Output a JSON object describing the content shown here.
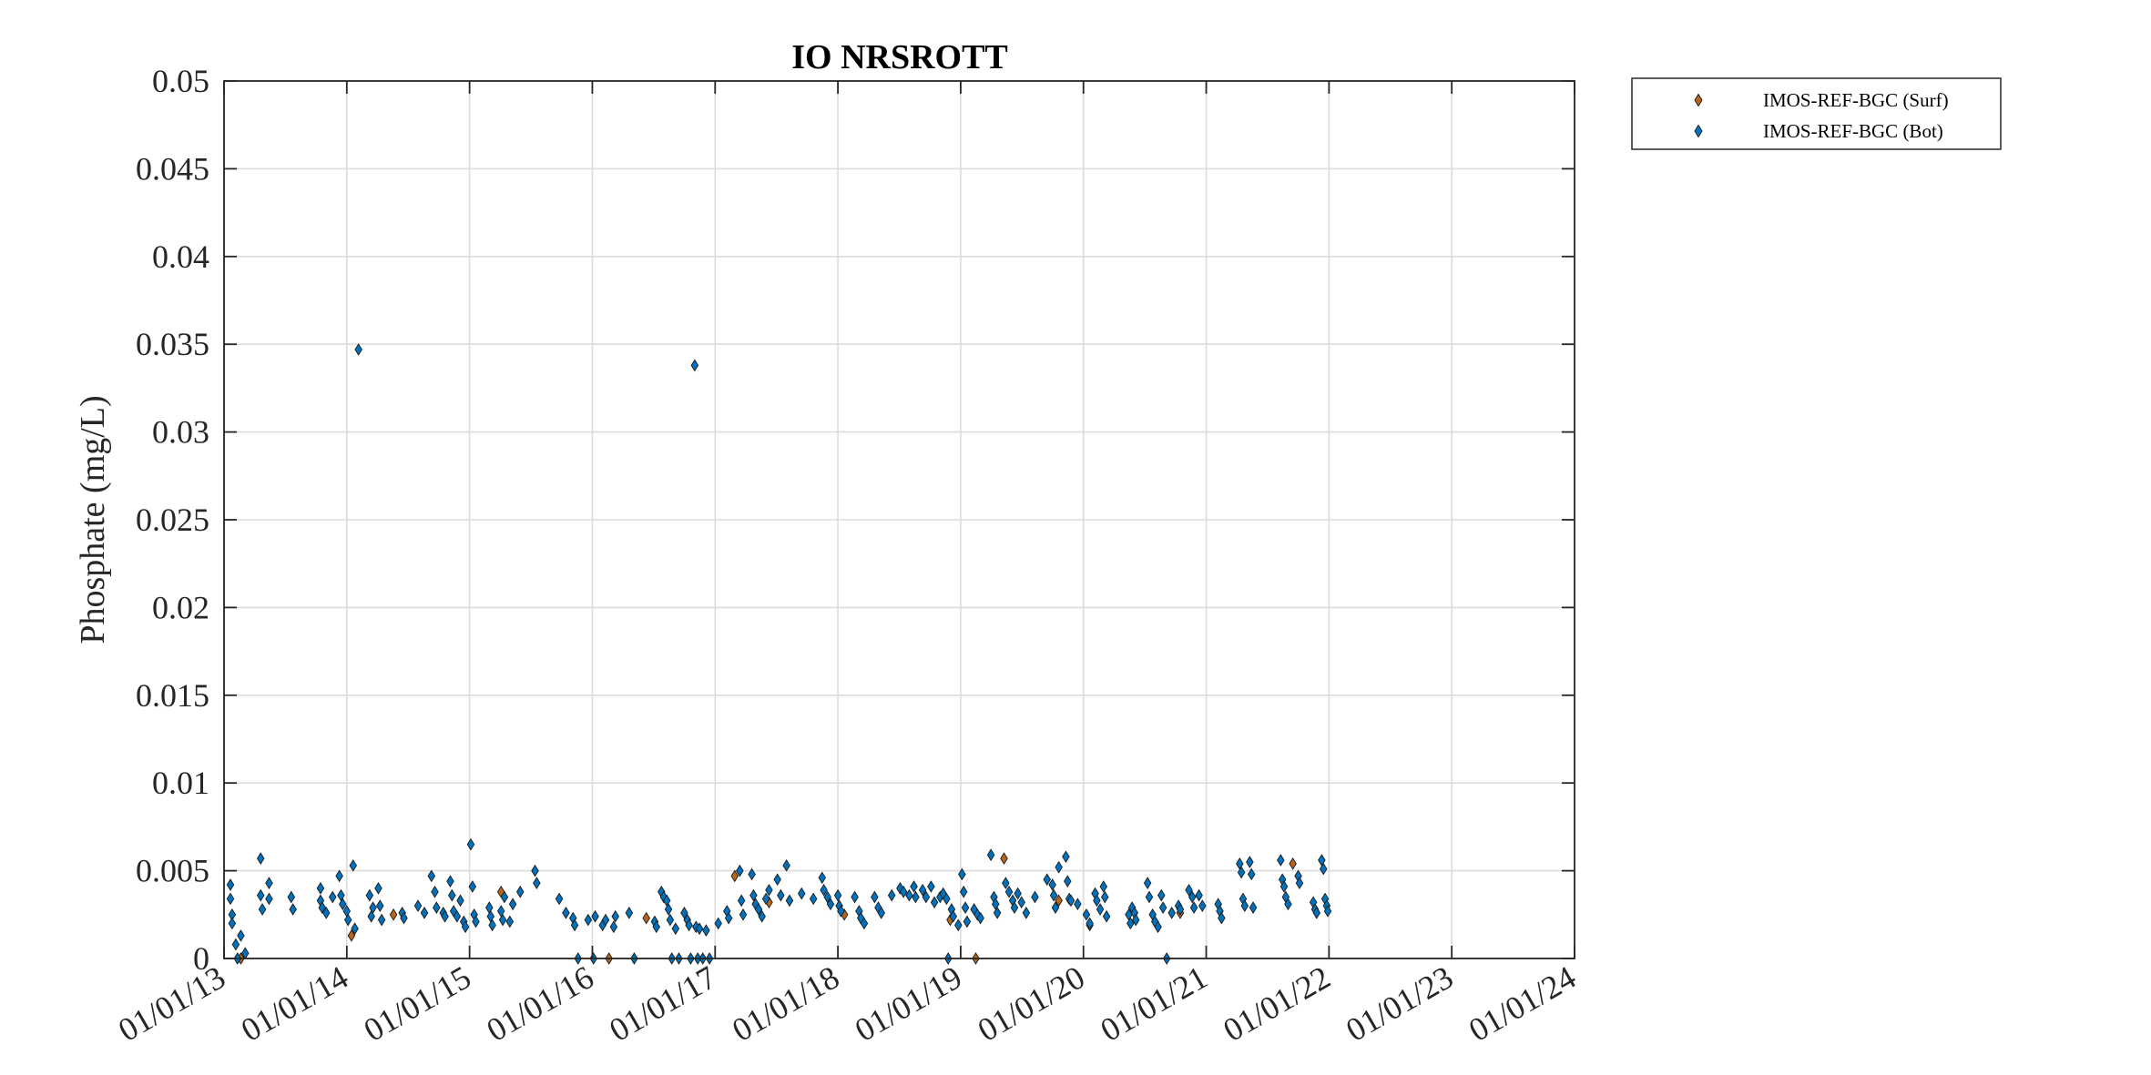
{
  "chart_data": {
    "type": "scatter",
    "title": "IO NRSROTT",
    "xlabel": "",
    "ylabel": "Phosphate (mg/L)",
    "xlim": [
      "2013-01-01",
      "2024-01-01"
    ],
    "ylim": [
      0,
      0.05
    ],
    "grid": true,
    "legend_position": "outside-top-right",
    "x_ticks": [
      "01/01/13",
      "01/01/14",
      "01/01/15",
      "01/01/16",
      "01/01/17",
      "01/01/18",
      "01/01/19",
      "01/01/20",
      "01/01/21",
      "01/01/22",
      "01/01/23",
      "01/01/24"
    ],
    "y_ticks": [
      "0",
      "0.005",
      "0.01",
      "0.015",
      "0.02",
      "0.025",
      "0.03",
      "0.035",
      "0.04",
      "0.045",
      "0.05"
    ],
    "series": [
      {
        "name": "IMOS-REF-BGC (Surf)",
        "color": "#b5651d",
        "marker": "diamond",
        "points": [
          [
            "2013-02-20",
            0.0
          ],
          [
            "2014-01-15",
            0.0013
          ],
          [
            "2014-05-20",
            0.0025
          ],
          [
            "2015-04-05",
            0.0038
          ],
          [
            "2016-02-20",
            0.0
          ],
          [
            "2016-06-10",
            0.0023
          ],
          [
            "2017-02-28",
            0.0047
          ],
          [
            "2017-06-10",
            0.0032
          ],
          [
            "2018-01-20",
            0.0025
          ],
          [
            "2018-12-01",
            0.0022
          ],
          [
            "2019-02-15",
            0.0
          ],
          [
            "2019-05-10",
            0.0057
          ],
          [
            "2019-10-20",
            0.0033
          ],
          [
            "2020-01-20",
            0.0019
          ],
          [
            "2020-10-15",
            0.0026
          ],
          [
            "2021-09-15",
            0.0054
          ]
        ]
      },
      {
        "name": "IMOS-REF-BGC (Bot)",
        "color": "#0072bd",
        "marker": "diamond",
        "points": [
          [
            "2013-01-20",
            0.0042
          ],
          [
            "2013-01-20",
            0.0034
          ],
          [
            "2013-01-25",
            0.0025
          ],
          [
            "2013-01-25",
            0.002
          ],
          [
            "2013-02-05",
            0.0008
          ],
          [
            "2013-02-10",
            0.0
          ],
          [
            "2013-02-20",
            0.0013
          ],
          [
            "2013-03-05",
            0.0003
          ],
          [
            "2013-04-20",
            0.0057
          ],
          [
            "2013-04-20",
            0.0036
          ],
          [
            "2013-04-25",
            0.0028
          ],
          [
            "2013-05-15",
            0.0043
          ],
          [
            "2013-05-15",
            0.0034
          ],
          [
            "2013-07-20",
            0.0035
          ],
          [
            "2013-07-25",
            0.0028
          ],
          [
            "2013-10-15",
            0.004
          ],
          [
            "2013-10-15",
            0.0033
          ],
          [
            "2013-10-20",
            0.0029
          ],
          [
            "2013-11-01",
            0.0026
          ],
          [
            "2013-11-20",
            0.0035
          ],
          [
            "2013-12-10",
            0.0047
          ],
          [
            "2013-12-15",
            0.0036
          ],
          [
            "2013-12-20",
            0.0031
          ],
          [
            "2014-01-01",
            0.0027
          ],
          [
            "2014-01-05",
            0.0022
          ],
          [
            "2014-01-20",
            0.0053
          ],
          [
            "2014-01-25",
            0.0017
          ],
          [
            "2014-02-05",
            0.0347
          ],
          [
            "2014-03-10",
            0.0036
          ],
          [
            "2014-03-15",
            0.0024
          ],
          [
            "2014-03-20",
            0.0029
          ],
          [
            "2014-04-05",
            0.004
          ],
          [
            "2014-04-10",
            0.003
          ],
          [
            "2014-04-15",
            0.0022
          ],
          [
            "2014-06-15",
            0.0026
          ],
          [
            "2014-06-20",
            0.0023
          ],
          [
            "2014-08-01",
            0.003
          ],
          [
            "2014-08-20",
            0.0026
          ],
          [
            "2014-09-10",
            0.0047
          ],
          [
            "2014-09-20",
            0.0038
          ],
          [
            "2014-09-25",
            0.0029
          ],
          [
            "2014-10-15",
            0.0026
          ],
          [
            "2014-10-20",
            0.0024
          ],
          [
            "2014-11-05",
            0.0044
          ],
          [
            "2014-11-10",
            0.0036
          ],
          [
            "2014-11-15",
            0.0027
          ],
          [
            "2014-11-25",
            0.0024
          ],
          [
            "2014-12-05",
            0.0033
          ],
          [
            "2014-12-15",
            0.0021
          ],
          [
            "2014-12-20",
            0.0018
          ],
          [
            "2015-01-05",
            0.0065
          ],
          [
            "2015-01-10",
            0.0041
          ],
          [
            "2015-01-15",
            0.0025
          ],
          [
            "2015-01-20",
            0.0021
          ],
          [
            "2015-03-01",
            0.0029
          ],
          [
            "2015-03-05",
            0.0024
          ],
          [
            "2015-03-10",
            0.0019
          ],
          [
            "2015-04-05",
            0.0027
          ],
          [
            "2015-04-10",
            0.0022
          ],
          [
            "2015-04-15",
            0.0035
          ],
          [
            "2015-05-01",
            0.0021
          ],
          [
            "2015-05-10",
            0.0031
          ],
          [
            "2015-06-01",
            0.0038
          ],
          [
            "2015-07-15",
            0.005
          ],
          [
            "2015-07-20",
            0.0043
          ],
          [
            "2015-09-25",
            0.0034
          ],
          [
            "2015-10-15",
            0.0026
          ],
          [
            "2015-11-05",
            0.0023
          ],
          [
            "2015-11-10",
            0.0019
          ],
          [
            "2015-11-20",
            0.0
          ],
          [
            "2015-12-20",
            0.0022
          ],
          [
            "2016-01-05",
            0.0
          ],
          [
            "2016-01-10",
            0.0024
          ],
          [
            "2016-02-01",
            0.0019
          ],
          [
            "2016-02-10",
            0.0022
          ],
          [
            "2016-03-05",
            0.0018
          ],
          [
            "2016-03-10",
            0.0024
          ],
          [
            "2016-04-20",
            0.0026
          ],
          [
            "2016-05-05",
            0.0
          ],
          [
            "2016-07-05",
            0.0021
          ],
          [
            "2016-07-10",
            0.0018
          ],
          [
            "2016-07-25",
            0.0038
          ],
          [
            "2016-08-01",
            0.0035
          ],
          [
            "2016-08-10",
            0.0033
          ],
          [
            "2016-08-15",
            0.0028
          ],
          [
            "2016-08-20",
            0.0022
          ],
          [
            "2016-08-25",
            0.0
          ],
          [
            "2016-09-05",
            0.0017
          ],
          [
            "2016-09-15",
            0.0
          ],
          [
            "2016-10-01",
            0.0026
          ],
          [
            "2016-10-10",
            0.0022
          ],
          [
            "2016-10-15",
            0.0019
          ],
          [
            "2016-11-05",
            0.0018
          ],
          [
            "2016-11-15",
            0.0017
          ],
          [
            "2016-12-05",
            0.0016
          ],
          [
            "2016-11-01",
            0.0338
          ],
          [
            "2016-10-20",
            0.0
          ],
          [
            "2016-11-10",
            0.0
          ],
          [
            "2016-11-25",
            0.0
          ],
          [
            "2016-12-15",
            0.0
          ],
          [
            "2017-01-10",
            0.002
          ],
          [
            "2017-02-05",
            0.0027
          ],
          [
            "2017-02-10",
            0.0023
          ],
          [
            "2017-03-15",
            0.005
          ],
          [
            "2017-03-20",
            0.0033
          ],
          [
            "2017-03-25",
            0.0025
          ],
          [
            "2017-04-20",
            0.0048
          ],
          [
            "2017-04-25",
            0.0036
          ],
          [
            "2017-05-01",
            0.0031
          ],
          [
            "2017-05-10",
            0.0028
          ],
          [
            "2017-05-20",
            0.0024
          ],
          [
            "2017-06-01",
            0.0034
          ],
          [
            "2017-06-10",
            0.0039
          ],
          [
            "2017-07-05",
            0.0045
          ],
          [
            "2017-07-15",
            0.0036
          ],
          [
            "2017-08-01",
            0.0053
          ],
          [
            "2017-08-10",
            0.0033
          ],
          [
            "2017-09-15",
            0.0037
          ],
          [
            "2017-10-20",
            0.0034
          ],
          [
            "2017-11-15",
            0.0046
          ],
          [
            "2017-11-20",
            0.0039
          ],
          [
            "2017-12-01",
            0.0035
          ],
          [
            "2017-12-10",
            0.0031
          ],
          [
            "2018-01-01",
            0.0036
          ],
          [
            "2018-01-05",
            0.003
          ],
          [
            "2018-01-10",
            0.0027
          ],
          [
            "2018-02-20",
            0.0035
          ],
          [
            "2018-03-05",
            0.0027
          ],
          [
            "2018-03-10",
            0.0023
          ],
          [
            "2018-03-20",
            0.002
          ],
          [
            "2018-04-20",
            0.0035
          ],
          [
            "2018-05-01",
            0.0029
          ],
          [
            "2018-05-10",
            0.0026
          ],
          [
            "2018-06-10",
            0.0036
          ],
          [
            "2018-07-05",
            0.004
          ],
          [
            "2018-07-15",
            0.0038
          ],
          [
            "2018-08-01",
            0.0036
          ],
          [
            "2018-08-15",
            0.0041
          ],
          [
            "2018-08-20",
            0.0035
          ],
          [
            "2018-09-10",
            0.0039
          ],
          [
            "2018-09-20",
            0.0035
          ],
          [
            "2018-10-05",
            0.0041
          ],
          [
            "2018-10-15",
            0.0032
          ],
          [
            "2018-11-01",
            0.0035
          ],
          [
            "2018-11-10",
            0.0037
          ],
          [
            "2018-11-20",
            0.0034
          ],
          [
            "2018-12-05",
            0.0028
          ],
          [
            "2018-12-10",
            0.0024
          ],
          [
            "2018-12-25",
            0.0019
          ],
          [
            "2018-11-25",
            0.0
          ],
          [
            "2019-01-05",
            0.0048
          ],
          [
            "2019-01-10",
            0.0038
          ],
          [
            "2019-01-15",
            0.0029
          ],
          [
            "2019-01-20",
            0.0021
          ],
          [
            "2019-02-10",
            0.0028
          ],
          [
            "2019-02-20",
            0.0025
          ],
          [
            "2019-03-01",
            0.0023
          ],
          [
            "2019-04-01",
            0.0059
          ],
          [
            "2019-04-10",
            0.0035
          ],
          [
            "2019-04-15",
            0.0031
          ],
          [
            "2019-04-20",
            0.0026
          ],
          [
            "2019-05-15",
            0.0043
          ],
          [
            "2019-05-25",
            0.0038
          ],
          [
            "2019-06-05",
            0.0033
          ],
          [
            "2019-06-10",
            0.0029
          ],
          [
            "2019-06-20",
            0.0037
          ],
          [
            "2019-07-01",
            0.0032
          ],
          [
            "2019-07-15",
            0.0026
          ],
          [
            "2019-08-10",
            0.0035
          ],
          [
            "2019-09-15",
            0.0045
          ],
          [
            "2019-10-01",
            0.0042
          ],
          [
            "2019-10-05",
            0.0036
          ],
          [
            "2019-10-10",
            0.0029
          ],
          [
            "2019-10-20",
            0.0052
          ],
          [
            "2019-11-10",
            0.0058
          ],
          [
            "2019-11-15",
            0.0044
          ],
          [
            "2019-11-20",
            0.0034
          ],
          [
            "2019-11-25",
            0.0033
          ],
          [
            "2019-12-15",
            0.0031
          ],
          [
            "2020-01-10",
            0.0025
          ],
          [
            "2020-01-20",
            0.002
          ],
          [
            "2020-02-05",
            0.0037
          ],
          [
            "2020-02-10",
            0.0033
          ],
          [
            "2020-02-20",
            0.0028
          ],
          [
            "2020-03-01",
            0.0041
          ],
          [
            "2020-03-05",
            0.0035
          ],
          [
            "2020-03-10",
            0.0024
          ],
          [
            "2020-05-15",
            0.0025
          ],
          [
            "2020-05-20",
            0.002
          ],
          [
            "2020-05-25",
            0.0029
          ],
          [
            "2020-06-01",
            0.0026
          ],
          [
            "2020-06-05",
            0.0022
          ],
          [
            "2020-07-10",
            0.0043
          ],
          [
            "2020-07-15",
            0.0035
          ],
          [
            "2020-07-25",
            0.0025
          ],
          [
            "2020-08-01",
            0.0021
          ],
          [
            "2020-08-10",
            0.0018
          ],
          [
            "2020-08-20",
            0.0036
          ],
          [
            "2020-08-25",
            0.0029
          ],
          [
            "2020-09-05",
            0.0
          ],
          [
            "2020-09-20",
            0.0026
          ],
          [
            "2020-10-10",
            0.003
          ],
          [
            "2020-10-15",
            0.0028
          ],
          [
            "2020-11-10",
            0.0039
          ],
          [
            "2020-11-20",
            0.0035
          ],
          [
            "2020-11-25",
            0.0029
          ],
          [
            "2020-12-10",
            0.0036
          ],
          [
            "2020-12-20",
            0.003
          ],
          [
            "2021-02-05",
            0.0031
          ],
          [
            "2021-02-10",
            0.0027
          ],
          [
            "2021-02-15",
            0.0023
          ],
          [
            "2021-04-10",
            0.0054
          ],
          [
            "2021-04-15",
            0.0049
          ],
          [
            "2021-04-20",
            0.0034
          ],
          [
            "2021-04-25",
            0.003
          ],
          [
            "2021-05-10",
            0.0055
          ],
          [
            "2021-05-15",
            0.0048
          ],
          [
            "2021-05-20",
            0.0029
          ],
          [
            "2021-08-10",
            0.0056
          ],
          [
            "2021-08-15",
            0.0045
          ],
          [
            "2021-08-20",
            0.0041
          ],
          [
            "2021-08-25",
            0.0035
          ],
          [
            "2021-09-01",
            0.0031
          ],
          [
            "2021-10-01",
            0.0047
          ],
          [
            "2021-10-05",
            0.0043
          ],
          [
            "2021-11-15",
            0.0032
          ],
          [
            "2021-11-20",
            0.0028
          ],
          [
            "2021-11-25",
            0.0026
          ],
          [
            "2021-12-10",
            0.0056
          ],
          [
            "2021-12-15",
            0.0051
          ],
          [
            "2021-12-20",
            0.0034
          ],
          [
            "2021-12-25",
            0.003
          ],
          [
            "2021-12-28",
            0.0027
          ]
        ]
      }
    ]
  }
}
